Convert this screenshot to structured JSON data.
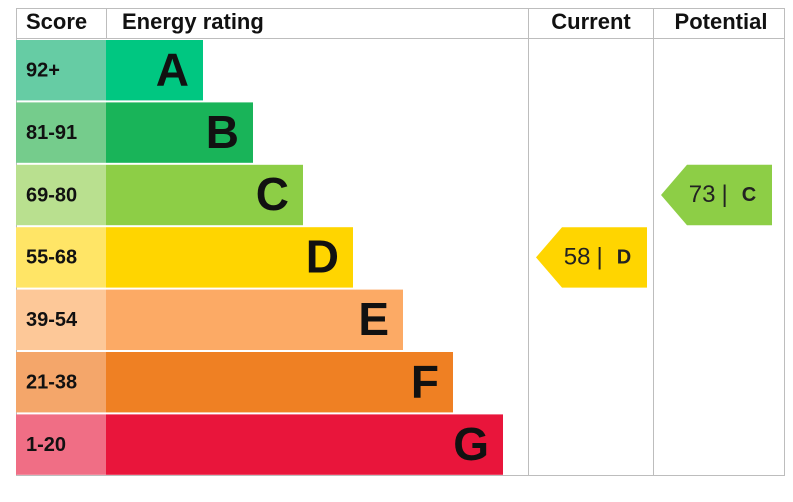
{
  "header": {
    "score": "Score",
    "rating": "Energy rating",
    "current": "Current",
    "potential": "Potential"
  },
  "bands": [
    {
      "score": "92+",
      "letter": "A",
      "bar_color": "#00c781",
      "score_color": "#66cca4"
    },
    {
      "score": "81-91",
      "letter": "B",
      "bar_color": "#19b459",
      "score_color": "#75cc8c"
    },
    {
      "score": "69-80",
      "letter": "C",
      "bar_color": "#8dce46",
      "score_color": "#b9e08f"
    },
    {
      "score": "55-68",
      "letter": "D",
      "bar_color": "#ffd500",
      "score_color": "#ffe566"
    },
    {
      "score": "39-54",
      "letter": "E",
      "bar_color": "#fcaa65",
      "score_color": "#fdc898"
    },
    {
      "score": "21-38",
      "letter": "F",
      "bar_color": "#ef8023",
      "score_color": "#f4a66a"
    },
    {
      "score": "1-20",
      "letter": "G",
      "bar_color": "#e9153b",
      "score_color": "#f06e85"
    }
  ],
  "current": {
    "value": 58,
    "separator": "|",
    "letter": "D"
  },
  "potential": {
    "value": 73,
    "separator": "|",
    "letter": "C"
  }
}
